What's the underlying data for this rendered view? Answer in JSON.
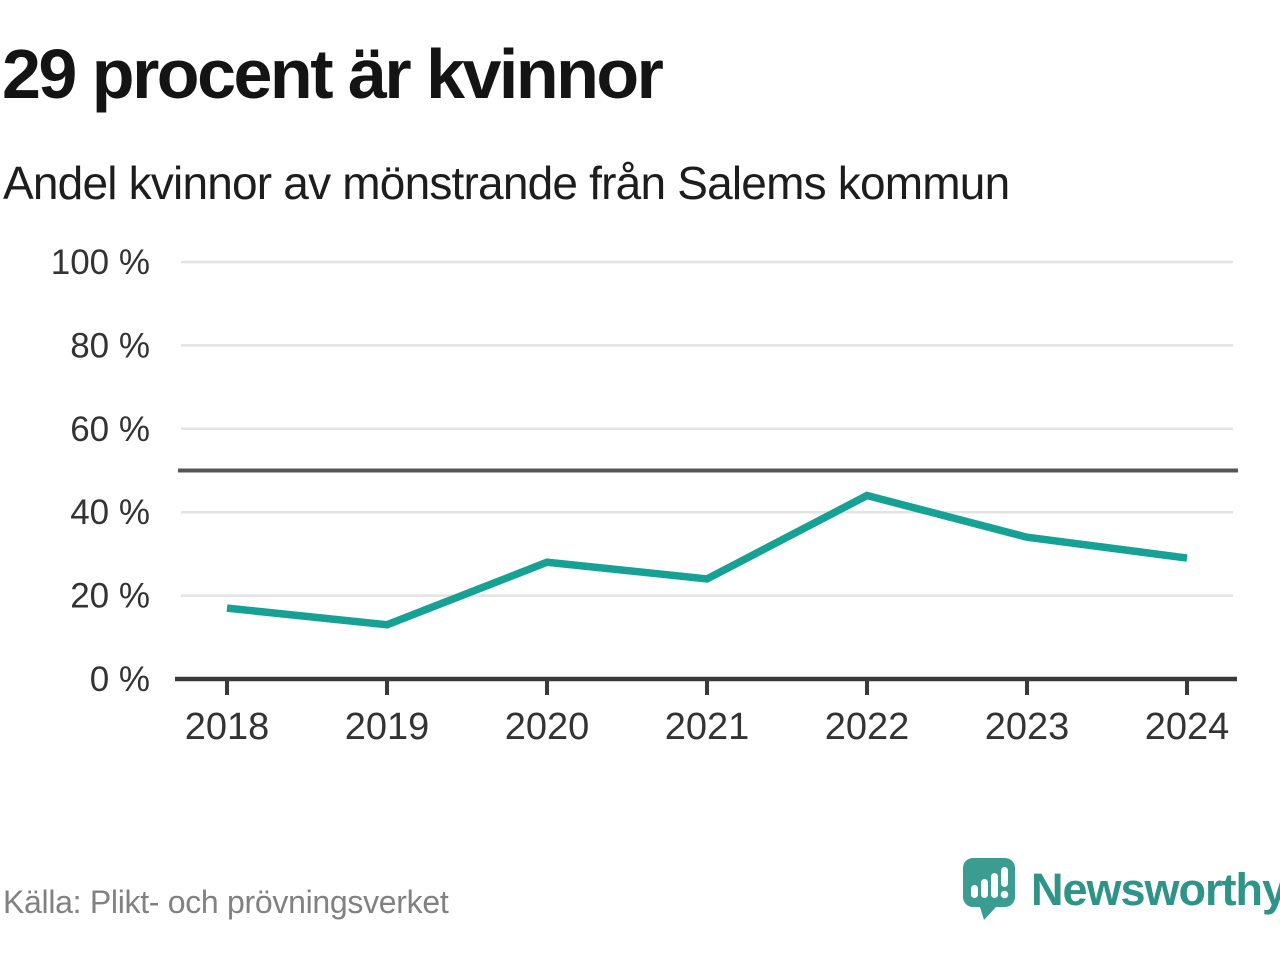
{
  "header": {
    "title": "29 procent är kvinnor",
    "subtitle": "Andel kvinnor av mönstrande från Salems kommun"
  },
  "chart_data": {
    "type": "line",
    "title": "29 procent är kvinnor",
    "subtitle": "Andel kvinnor av mönstrande från Salems kommun",
    "categories": [
      "2018",
      "2019",
      "2020",
      "2021",
      "2022",
      "2023",
      "2024"
    ],
    "values": [
      17,
      13,
      28,
      24,
      44,
      34,
      29
    ],
    "unit": "%",
    "ylim": [
      0,
      100
    ],
    "yticks": [
      0,
      20,
      40,
      60,
      80,
      100
    ],
    "ytick_labels": [
      "0 %",
      "20 %",
      "40 %",
      "60 %",
      "80 %",
      "100 %"
    ],
    "reference_line": {
      "value": 50
    },
    "grid": true,
    "legend": "none",
    "colors": {
      "line": "#16a195",
      "reference": "#555555",
      "axis": "#3a3a3a",
      "grid": "#e3e3e3",
      "tick_label": "#333333"
    }
  },
  "footer": {
    "source": "Källa: Plikt- och prövningsverket",
    "brand": "Newsworthy",
    "brand_color": "#2f9488",
    "logo_color": "#3b9c92"
  }
}
